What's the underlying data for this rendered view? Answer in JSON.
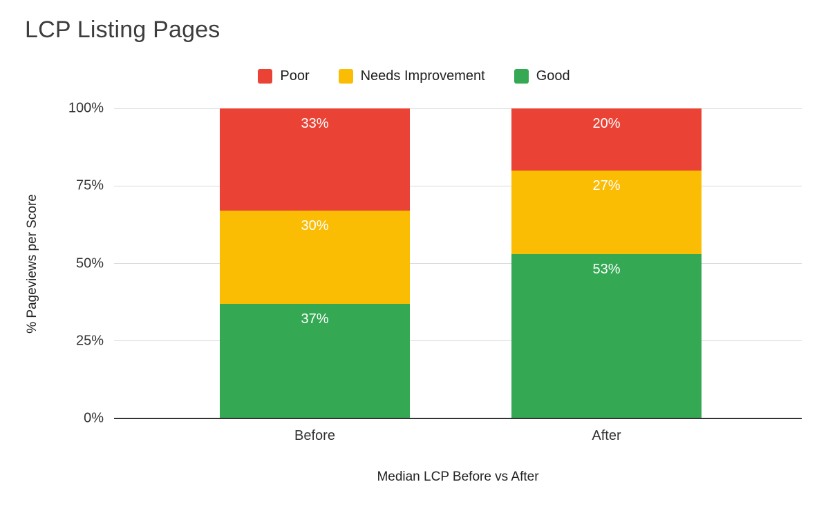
{
  "title": "LCP Listing Pages",
  "legend": {
    "items": [
      {
        "label": "Poor",
        "color": "#EA4335"
      },
      {
        "label": "Needs Improvement",
        "color": "#FBBC04"
      },
      {
        "label": "Good",
        "color": "#34A853"
      }
    ]
  },
  "chart_data": {
    "type": "bar",
    "stacked": true,
    "title": "LCP Listing Pages",
    "categories": [
      "Before",
      "After"
    ],
    "series": [
      {
        "name": "Good",
        "color": "#34A853",
        "values": [
          37,
          53
        ]
      },
      {
        "name": "Needs Improvement",
        "color": "#FBBC04",
        "values": [
          30,
          27
        ]
      },
      {
        "name": "Poor",
        "color": "#EA4335",
        "values": [
          33,
          20
        ]
      }
    ],
    "stack_order": "bottom-to-top",
    "xlabel": "Median LCP Before vs After",
    "ylabel": "% Pageviews per Score",
    "ylim": [
      0,
      100
    ],
    "ytick_labels": [
      "0%",
      "25%",
      "50%",
      "75%",
      "100%"
    ],
    "ytick_values": [
      0,
      25,
      50,
      75,
      100
    ],
    "grid": true,
    "legend_position": "top",
    "data_label_format": "percent",
    "data_label_color": "#ffffff"
  }
}
